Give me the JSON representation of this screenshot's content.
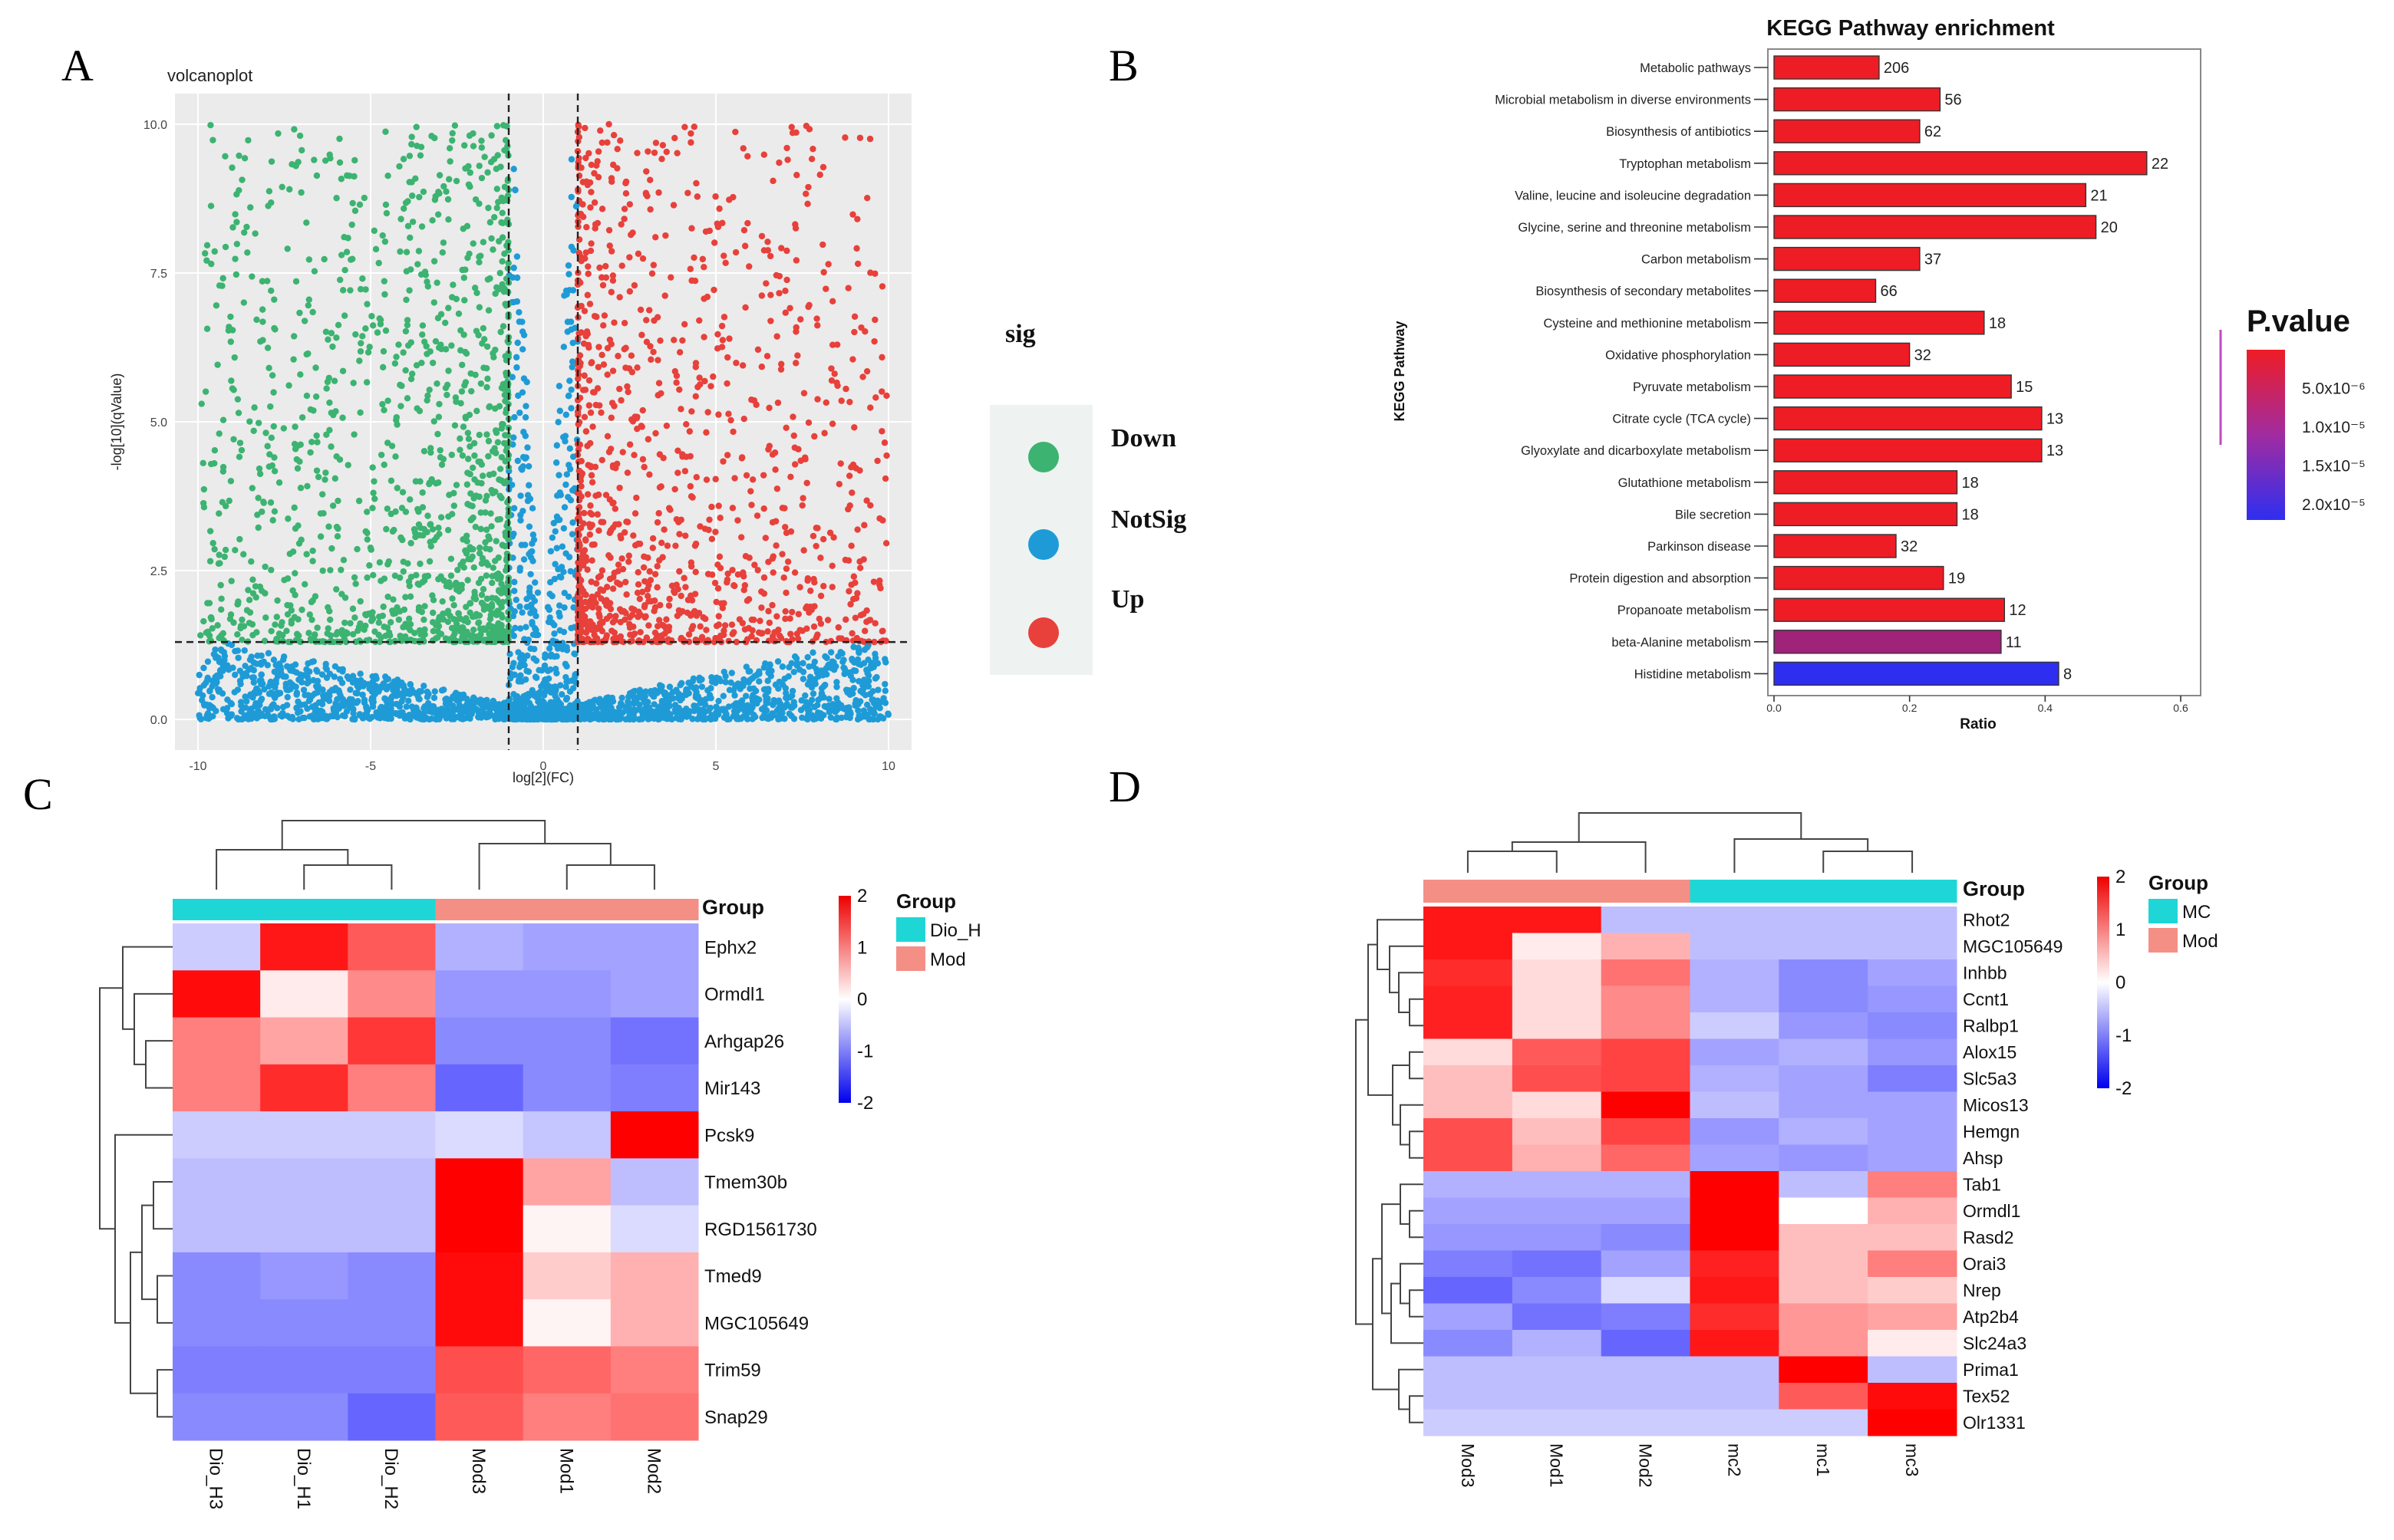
{
  "panel_letters": [
    "A",
    "B",
    "C",
    "D"
  ],
  "chart_data": [
    {
      "panel": "A",
      "type": "scatter",
      "title": "volcanoplot",
      "xlabel": "log[2](FC)",
      "ylabel": "-log[10](qValue)",
      "xlim": [
        -10,
        10
      ],
      "ylim": [
        0,
        10
      ],
      "xticks": [
        "-10",
        "-5",
        "0",
        "5",
        "10"
      ],
      "yticks": [
        "0.0",
        "2.5",
        "5.0",
        "7.5",
        "10.0"
      ],
      "fc_threshold": 1,
      "q_threshold": 1.3,
      "legend_title": "sig",
      "legend_position": "right",
      "series": [
        {
          "name": "Down",
          "color": "#3cb371",
          "rule": "log2FC < -1 and -log10q > 1.3"
        },
        {
          "name": "NotSig",
          "color": "#1e9bd7",
          "rule": "|log2FC| <= 1 or -log10q <= 1.3"
        },
        {
          "name": "Up",
          "color": "#e8403a",
          "rule": "log2FC > 1 and -log10q > 1.3"
        }
      ],
      "points_note": "several thousand genes; dense NotSig band below q threshold"
    },
    {
      "panel": "B",
      "type": "bar",
      "orientation": "horizontal",
      "title": "KEGG Pathway enrichment",
      "xlabel": "Ratio",
      "ylabel": "KEGG Pathway",
      "xlim": [
        0,
        0.6
      ],
      "xticks": [
        "0.0",
        "0.2",
        "0.4",
        "0.6"
      ],
      "categories": [
        "Metabolic pathways",
        "Microbial metabolism in diverse environments",
        "Biosynthesis of antibiotics",
        "Tryptophan metabolism",
        "Valine, leucine and isoleucine degradation",
        "Glycine, serine and threonine metabolism",
        "Carbon metabolism",
        "Biosynthesis of secondary metabolites",
        "Cysteine and methionine metabolism",
        "Oxidative phosphorylation",
        "Pyruvate metabolism",
        "Citrate cycle (TCA cycle)",
        "Glyoxylate and dicarboxylate metabolism",
        "Glutathione metabolism",
        "Bile secretion",
        "Parkinson disease",
        "Protein digestion and absorption",
        "Propanoate metabolism",
        "beta-Alanine metabolism",
        "Histidine metabolism"
      ],
      "values": [
        0.155,
        0.245,
        0.215,
        0.55,
        0.46,
        0.475,
        0.215,
        0.15,
        0.31,
        0.2,
        0.35,
        0.395,
        0.395,
        0.27,
        0.27,
        0.18,
        0.25,
        0.34,
        0.335,
        0.42
      ],
      "counts": [
        "206",
        "56",
        "62",
        "22",
        "21",
        "20",
        "37",
        "66",
        "18",
        "32",
        "15",
        "13",
        "13",
        "18",
        "18",
        "32",
        "19",
        "12",
        "11",
        "8"
      ],
      "pvalues": [
        1e-09,
        1e-09,
        1e-09,
        1e-09,
        1e-09,
        1e-09,
        1e-09,
        1e-09,
        1e-09,
        1e-09,
        1e-09,
        1e-09,
        1e-09,
        1e-09,
        1e-09,
        1e-09,
        1e-09,
        1e-09,
        9e-06,
        2.2e-05
      ],
      "legend_title": "P.value",
      "legend_ticks": [
        "5.0x10⁻⁶",
        "1.0x10⁻⁵",
        "1.5x10⁻⁵",
        "2.0x10⁻⁵"
      ],
      "legend_tick_values": [
        5e-06,
        1e-05,
        1.5e-05,
        2e-05
      ],
      "color_range": {
        "low": "#ee1c25",
        "high": "#2e2ef0",
        "min": 0,
        "max": 2.2e-05
      }
    },
    {
      "panel": "C",
      "type": "heatmap",
      "columns": [
        "Dio_H3",
        "Dio_H1",
        "Dio_H2",
        "Mod3",
        "Mod1",
        "Mod2"
      ],
      "column_groups": [
        "Dio_H",
        "Dio_H",
        "Dio_H",
        "Mod",
        "Mod",
        "Mod"
      ],
      "rows": [
        "Ephx2",
        "Ormdl1",
        "Arhgap26",
        "Mir143",
        "Pcsk9",
        "Tmem30b",
        "RGD1561730",
        "Tmed9",
        "MGC105649",
        "Trim59",
        "Snap29"
      ],
      "values": [
        [
          -0.3,
          1.8,
          1.2,
          -0.5,
          -0.6,
          -0.6
        ],
        [
          1.9,
          0.1,
          0.8,
          -0.7,
          -0.7,
          -0.6
        ],
        [
          0.9,
          0.6,
          1.5,
          -0.8,
          -0.8,
          -1.0
        ],
        [
          0.9,
          1.6,
          0.9,
          -1.1,
          -0.8,
          -0.9
        ],
        [
          -0.3,
          -0.3,
          -0.3,
          -0.2,
          -0.35,
          2.0
        ],
        [
          -0.4,
          -0.4,
          -0.4,
          2.0,
          0.6,
          -0.4
        ],
        [
          -0.4,
          -0.4,
          -0.4,
          2.0,
          0.05,
          -0.2
        ],
        [
          -0.8,
          -0.7,
          -0.8,
          1.9,
          0.3,
          0.5
        ],
        [
          -0.8,
          -0.8,
          -0.8,
          1.9,
          0.05,
          0.5
        ],
        [
          -0.9,
          -0.9,
          -0.9,
          1.3,
          1.1,
          0.9
        ],
        [
          -0.8,
          -0.8,
          -1.1,
          1.2,
          0.9,
          1.0
        ]
      ],
      "group_label": "Group",
      "groups": [
        {
          "name": "Dio_H",
          "color": "#1fd6d6"
        },
        {
          "name": "Mod",
          "color": "#f48f86"
        }
      ],
      "scale_ticks": [
        "2",
        "1",
        "0",
        "-1",
        "-2"
      ],
      "scale_tick_values": [
        2,
        1,
        0,
        -1,
        -2
      ],
      "range": [
        -2,
        2
      ]
    },
    {
      "panel": "D",
      "type": "heatmap",
      "columns": [
        "Mod3",
        "Mod1",
        "Mod2",
        "mc2",
        "mc1",
        "mc3"
      ],
      "column_groups": [
        "Mod",
        "Mod",
        "Mod",
        "MC",
        "MC",
        "MC"
      ],
      "rows": [
        "Rhot2",
        "MGC105649",
        "Inhbb",
        "Ccnt1",
        "Ralbp1",
        "Alox15",
        "Slc5a3",
        "Micos13",
        "Hemgn",
        "Ahsp",
        "Tab1",
        "Ormdl1",
        "Rasd2",
        "Orai3",
        "Nrep",
        "Atp2b4",
        "Slc24a3",
        "Prima1",
        "Tex52",
        "Olr1331"
      ],
      "values": [
        [
          1.8,
          1.8,
          -0.4,
          -0.4,
          -0.4,
          -0.4
        ],
        [
          1.8,
          0.1,
          0.5,
          -0.4,
          -0.4,
          -0.4
        ],
        [
          1.6,
          0.2,
          1.0,
          -0.5,
          -0.8,
          -0.6
        ],
        [
          1.7,
          0.2,
          0.8,
          -0.5,
          -0.8,
          -0.7
        ],
        [
          1.7,
          0.2,
          0.8,
          -0.3,
          -0.7,
          -0.8
        ],
        [
          0.2,
          1.2,
          1.4,
          -0.6,
          -0.5,
          -0.7
        ],
        [
          0.4,
          1.3,
          1.4,
          -0.5,
          -0.6,
          -0.9
        ],
        [
          0.4,
          0.2,
          2.0,
          -0.4,
          -0.6,
          -0.6
        ],
        [
          1.3,
          0.4,
          1.4,
          -0.7,
          -0.5,
          -0.6
        ],
        [
          1.3,
          0.5,
          1.1,
          -0.6,
          -0.7,
          -0.6
        ],
        [
          -0.5,
          -0.5,
          -0.5,
          2.0,
          -0.4,
          0.9
        ],
        [
          -0.6,
          -0.6,
          -0.6,
          2.0,
          0.0,
          0.5
        ],
        [
          -0.7,
          -0.7,
          -0.8,
          2.0,
          0.4,
          0.4
        ],
        [
          -0.9,
          -1.0,
          -0.6,
          1.7,
          0.4,
          0.9
        ],
        [
          -1.1,
          -0.8,
          -0.2,
          1.8,
          0.4,
          0.3
        ],
        [
          -0.6,
          -1.0,
          -0.9,
          1.6,
          0.7,
          0.6
        ],
        [
          -0.8,
          -0.5,
          -1.1,
          1.8,
          0.7,
          0.1
        ],
        [
          -0.4,
          -0.4,
          -0.4,
          -0.4,
          2.0,
          -0.4
        ],
        [
          -0.4,
          -0.4,
          -0.4,
          -0.4,
          1.2,
          1.9
        ],
        [
          -0.3,
          -0.3,
          -0.3,
          -0.3,
          -0.3,
          2.0
        ]
      ],
      "group_label": "Group",
      "groups": [
        {
          "name": "MC",
          "color": "#1fd6d6"
        },
        {
          "name": "Mod",
          "color": "#f48f86"
        }
      ],
      "scale_ticks": [
        "2",
        "1",
        "0",
        "-1",
        "-2"
      ],
      "scale_tick_values": [
        2,
        1,
        0,
        -1,
        -2
      ],
      "range": [
        -2,
        2
      ]
    }
  ]
}
